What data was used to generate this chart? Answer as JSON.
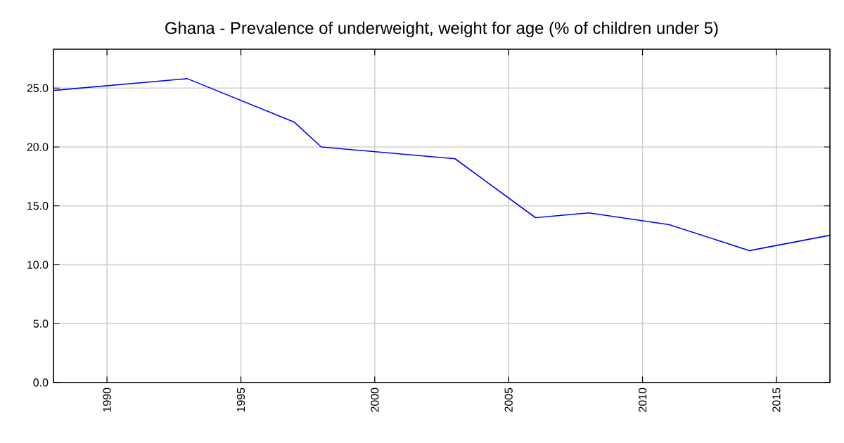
{
  "chart_data": {
    "type": "line",
    "title": "Ghana - Prevalence of underweight, weight for age (% of children under 5)",
    "x": [
      1988,
      1993,
      1997,
      1998,
      2003,
      2006,
      2008,
      2011,
      2014,
      2017
    ],
    "values": [
      24.8,
      25.8,
      22.1,
      20.0,
      19.0,
      14.0,
      14.4,
      13.4,
      11.2,
      12.5
    ],
    "color": "#0000ff",
    "xlim": [
      1988,
      2017
    ],
    "ylim": [
      0,
      28.3
    ],
    "xticks": [
      1990,
      1995,
      2000,
      2005,
      2010,
      2015
    ],
    "yticks": [
      {
        "value": 0,
        "label": "0.0"
      },
      {
        "value": 5,
        "label": "5.0"
      },
      {
        "value": 10,
        "label": "10.0"
      },
      {
        "value": 15,
        "label": "15.0"
      },
      {
        "value": 20,
        "label": "20.0"
      },
      {
        "value": 25,
        "label": "25.0"
      }
    ],
    "grid": true,
    "marker": "none",
    "line_style": "solid"
  }
}
